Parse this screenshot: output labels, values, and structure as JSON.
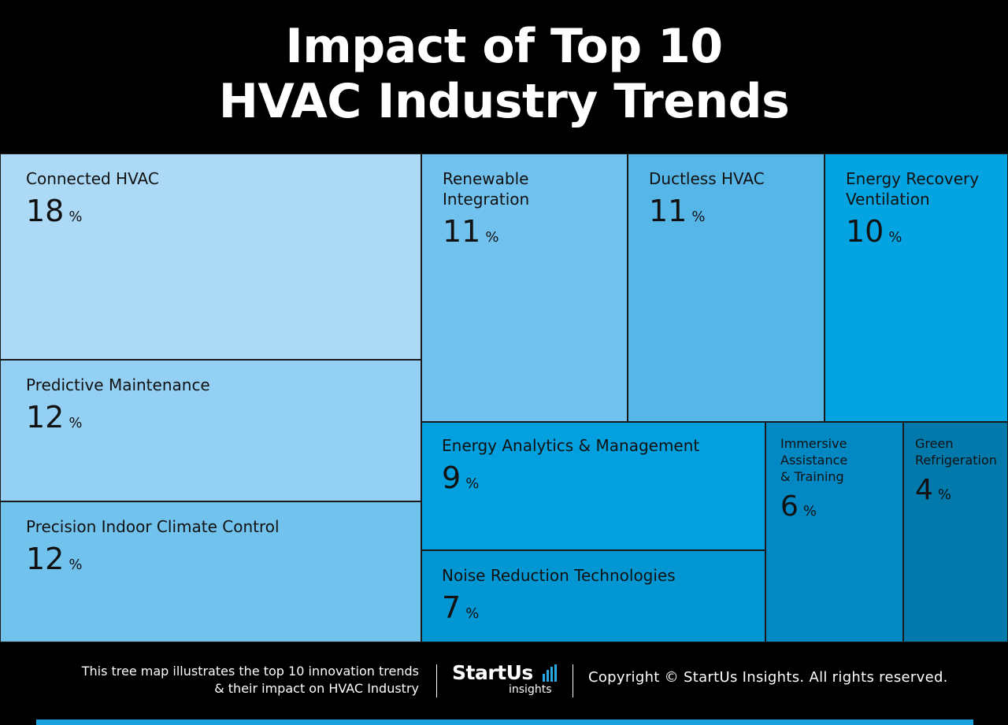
{
  "title": {
    "line1": "Impact of Top 10",
    "line2": "HVAC Industry Trends"
  },
  "chart_data": {
    "type": "treemap",
    "unit": "%",
    "items": [
      {
        "name": "Connected HVAC",
        "value": 18,
        "color": "#acd9f6"
      },
      {
        "name": "Predictive Maintenance",
        "value": 12,
        "color": "#93d0f3"
      },
      {
        "name": "Precision Indoor Climate Control",
        "value": 12,
        "color": "#72c2ee"
      },
      {
        "name": "Renewable\nIntegration",
        "value": 11,
        "color": "#71c2ee"
      },
      {
        "name": "Ductless HVAC",
        "value": 11,
        "color": "#56b6e8"
      },
      {
        "name": "Energy Recovery\nVentilation",
        "value": 10,
        "color": "#04a4e2"
      },
      {
        "name": "Energy Analytics & Management",
        "value": 9,
        "color": "#02a0de"
      },
      {
        "name": "Noise Reduction Technologies",
        "value": 7,
        "color": "#0296d3"
      },
      {
        "name": "Immersive\nAssistance\n& Training",
        "value": 6,
        "color": "#0288c3"
      },
      {
        "name": "Green\nRefrigeration",
        "value": 4,
        "color": "#0279ab"
      }
    ]
  },
  "footer": {
    "description_line1": "This tree map illustrates the top 10 innovation trends",
    "description_line2": "& their impact on HVAC Industry",
    "logo_text": "StartUs",
    "logo_sub": "insights",
    "copyright": "Copyright © StartUs Insights. All rights reserved."
  },
  "colors": {
    "background": "#000000",
    "accent": "#1ba1de"
  }
}
